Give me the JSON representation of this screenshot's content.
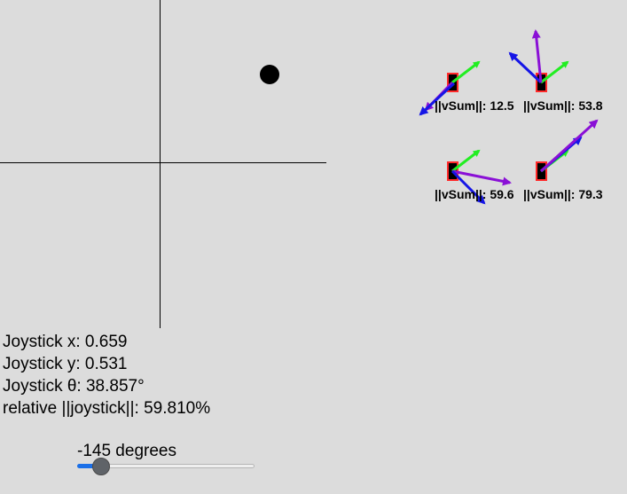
{
  "readouts": {
    "joystick_x": "Joystick x: 0.659",
    "joystick_y": "Joystick y: 0.531",
    "joystick_theta": "Joystick θ: 38.857°",
    "relative_magnitude": "relative ||joystick||: 59.810%"
  },
  "robots": [
    {
      "label": "||vSum||: 12.5"
    },
    {
      "label": "||vSum||: 53.8"
    },
    {
      "label": "||vSum||: 59.6"
    },
    {
      "label": "||vSum||: 79.3"
    }
  ],
  "slider": {
    "label": "-145 degrees",
    "min": -180,
    "max": 180,
    "value": -145
  },
  "colors": {
    "background": "#dcdcdc",
    "robot_body": "#000000",
    "robot_border": "#ff2a2a",
    "arrow_green": "#22ee22",
    "arrow_blue": "#1515e6",
    "arrow_purple": "#8a10d6",
    "slider_fill": "#1a6fe8"
  }
}
